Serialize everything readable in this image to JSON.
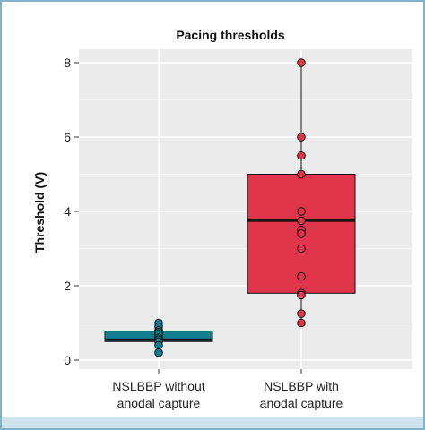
{
  "chart_data": {
    "type": "box",
    "title": "Pacing thresholds",
    "xlabel": "",
    "ylabel": "Threshold (V)",
    "ylim": [
      0,
      8.4
    ],
    "yticks": [
      0,
      2,
      4,
      6,
      8
    ],
    "grid": true,
    "legend": "none",
    "categories": [
      "NSLBBP without\nanodal capture",
      "NSLBBP with\nanodal capture"
    ],
    "series": [
      {
        "category_index": 0,
        "q1": 0.5,
        "median": 0.55,
        "q3": 0.78,
        "whisker_low": 0.2,
        "whisker_high": 1.0,
        "points": [
          1.0,
          0.9,
          0.8,
          0.75,
          0.7,
          0.6,
          0.55,
          0.5,
          0.4,
          0.2
        ],
        "fill": "#127d8f"
      },
      {
        "category_index": 1,
        "q1": 1.8,
        "median": 3.75,
        "q3": 5.0,
        "whisker_low": 1.0,
        "whisker_high": 8.0,
        "points": [
          8.0,
          6.0,
          5.5,
          5.0,
          4.0,
          3.75,
          3.5,
          3.4,
          3.0,
          2.25,
          1.8,
          1.75,
          1.25,
          1.0
        ],
        "fill": "#e0354b"
      }
    ],
    "colors": {
      "panel_bg": "#ebebeb",
      "grid": "#ffffff",
      "box_outline": "#111111",
      "point_outline": "#111111"
    }
  }
}
